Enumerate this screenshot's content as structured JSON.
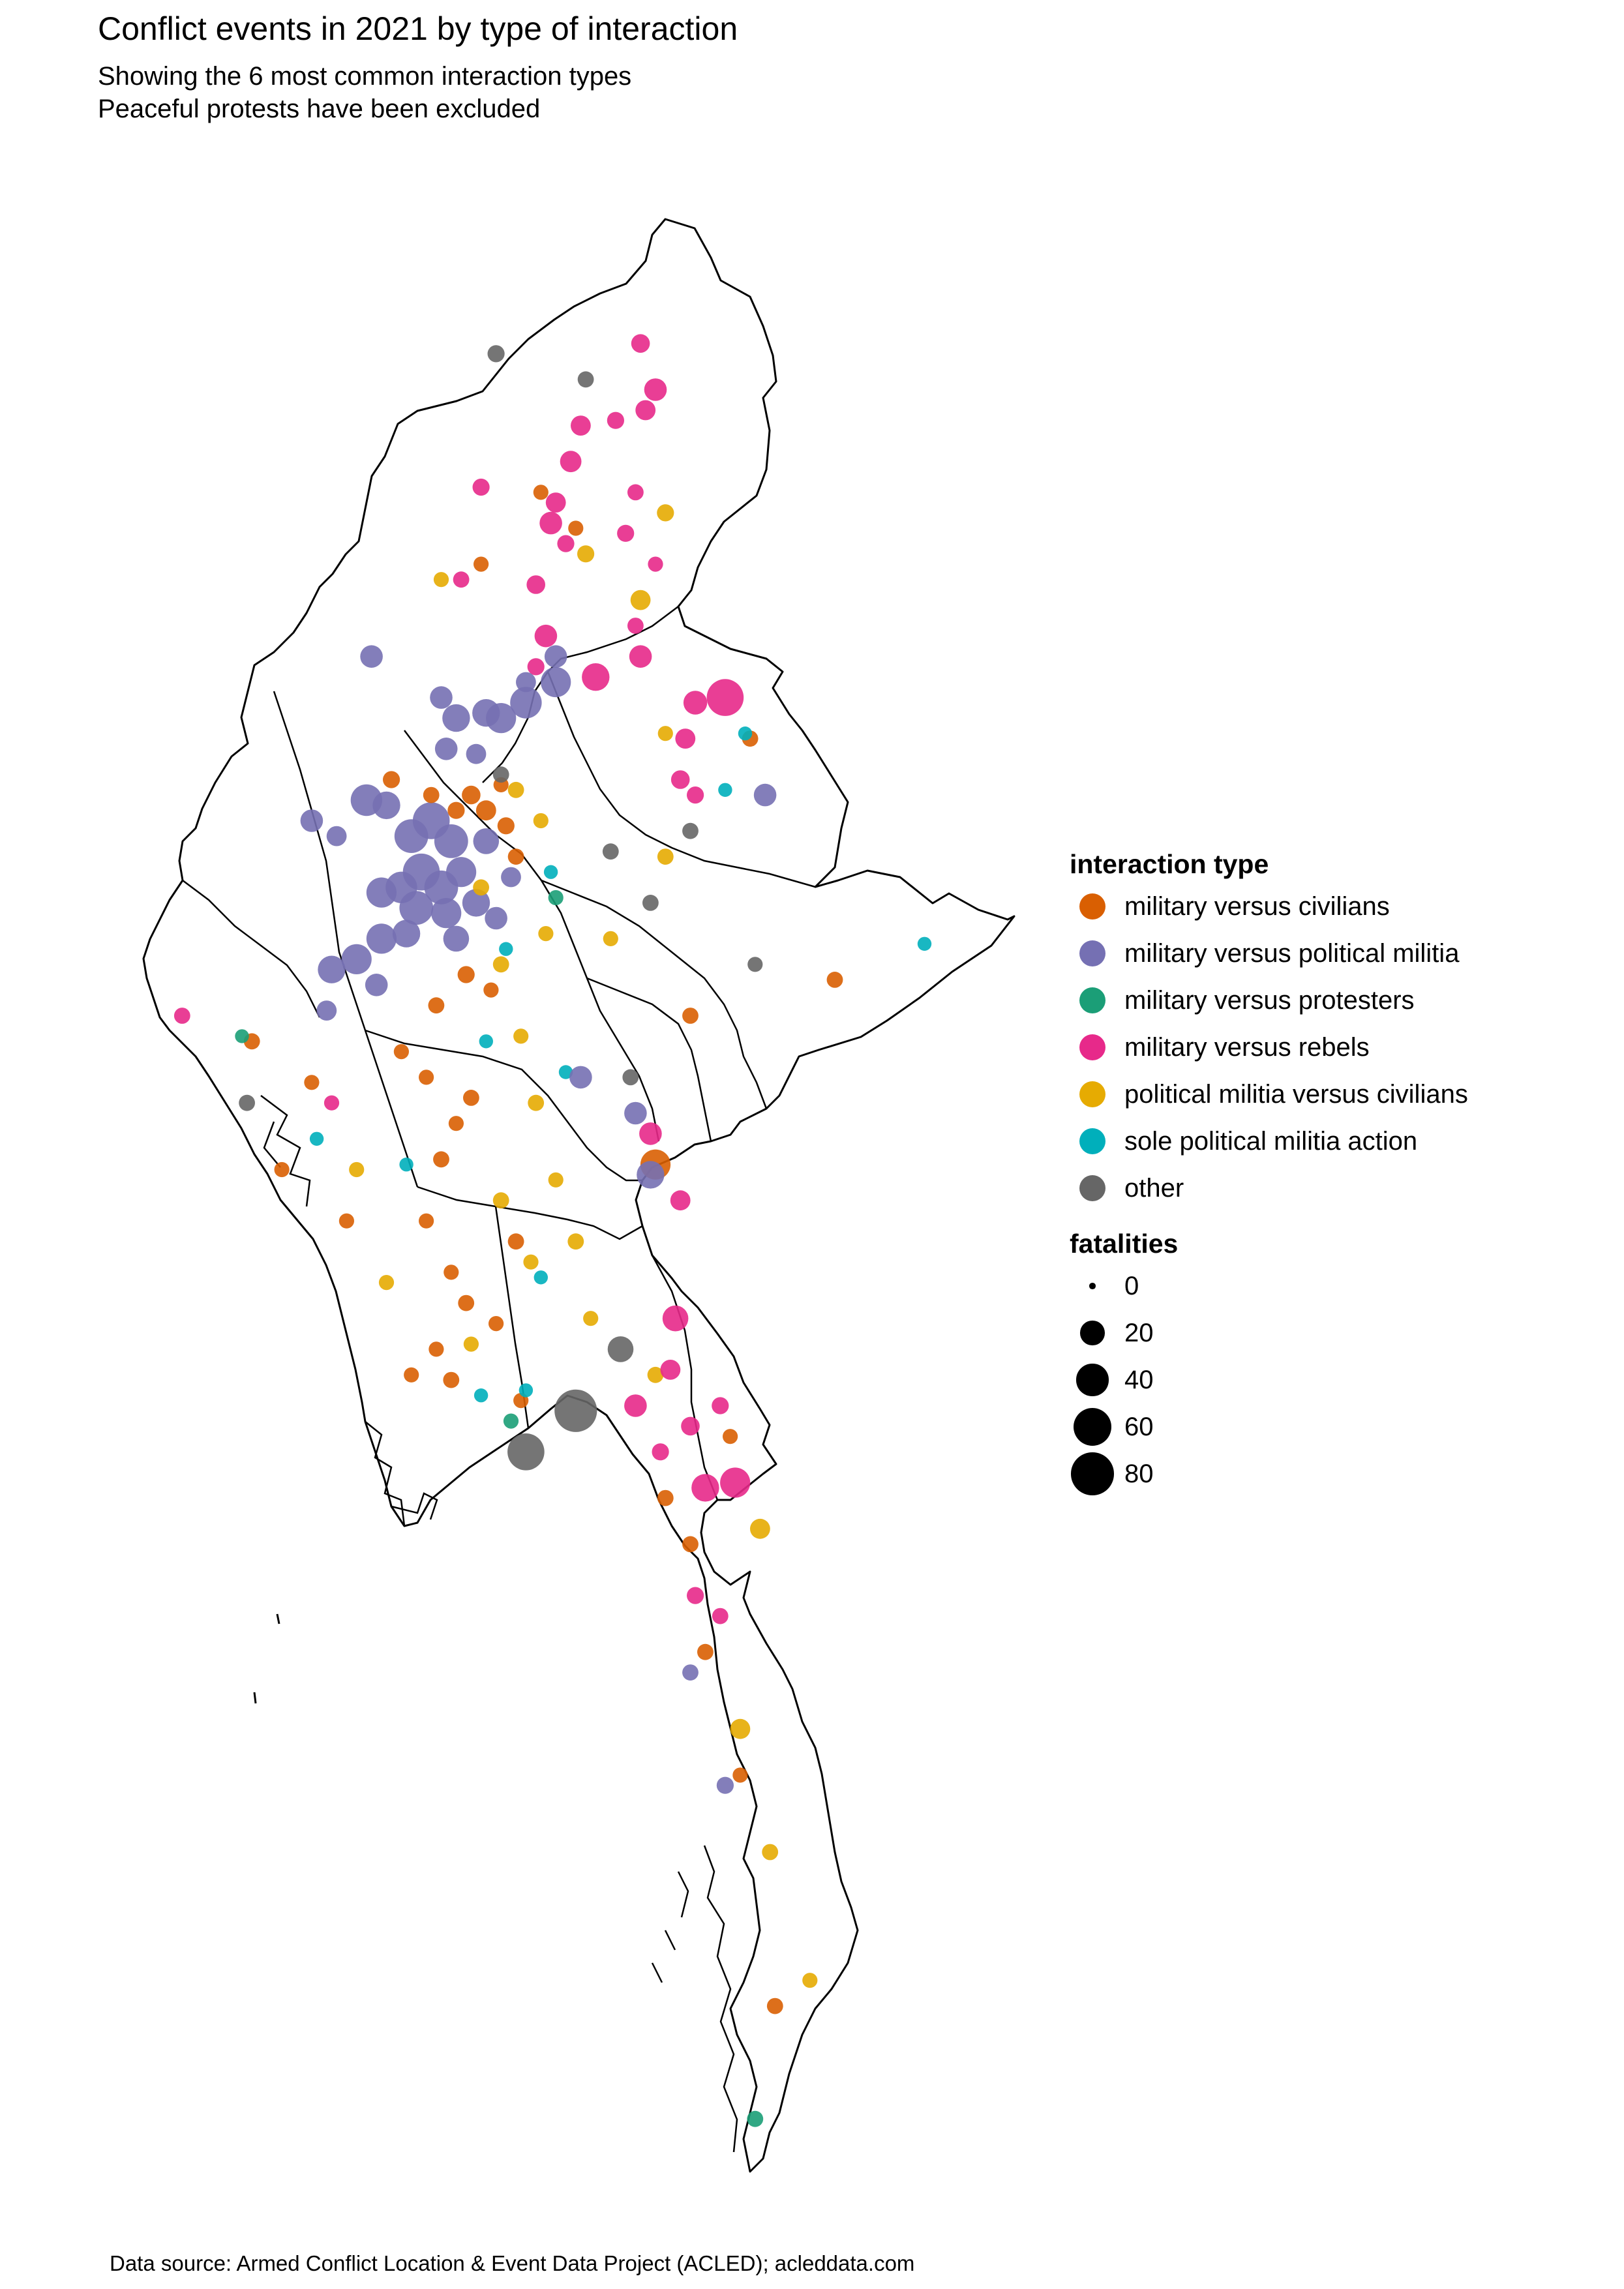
{
  "title": "Conflict events in 2021 by type of interaction",
  "subtitle_lines": [
    "Showing the 6 most common interaction types",
    "Peaceful protests have been excluded"
  ],
  "caption": "Data source: Armed Conflict Location & Event Data Project (ACLED); acleddata.com",
  "legend": {
    "color_title": "interaction type",
    "types": [
      {
        "label": "military versus civilians",
        "color": "#D95F02"
      },
      {
        "label": "military versus political militia",
        "color": "#7570B3"
      },
      {
        "label": "military versus protesters",
        "color": "#1B9E77"
      },
      {
        "label": "military versus rebels",
        "color": "#E7298A"
      },
      {
        "label": "political militia versus civilians",
        "color": "#E6AB02"
      },
      {
        "label": "sole political militia action",
        "color": "#00AFBB"
      },
      {
        "label": "other",
        "color": "#666666"
      }
    ],
    "size_title": "fatalities",
    "sizes": [
      {
        "label": "0",
        "value": 0
      },
      {
        "label": "20",
        "value": 20
      },
      {
        "label": "40",
        "value": 40
      },
      {
        "label": "60",
        "value": 60
      },
      {
        "label": "80",
        "value": 80
      }
    ]
  },
  "map": {
    "outline_color": "#000000",
    "background_color": "#FFFFFF",
    "events": [
      {
        "type": 3,
        "lon": 97.45,
        "lat": 27.35,
        "fatalities": 8
      },
      {
        "type": 3,
        "lon": 97.6,
        "lat": 26.9,
        "fatalities": 14
      },
      {
        "type": 3,
        "lon": 97.5,
        "lat": 26.7,
        "fatalities": 10
      },
      {
        "type": 3,
        "lon": 97.2,
        "lat": 26.6,
        "fatalities": 6
      },
      {
        "type": 3,
        "lon": 97.4,
        "lat": 25.9,
        "fatalities": 5
      },
      {
        "type": 6,
        "lon": 96.9,
        "lat": 27.0,
        "fatalities": 5
      },
      {
        "type": 3,
        "lon": 96.85,
        "lat": 26.55,
        "fatalities": 10
      },
      {
        "type": 3,
        "lon": 96.75,
        "lat": 26.2,
        "fatalities": 12
      },
      {
        "type": 3,
        "lon": 96.6,
        "lat": 25.8,
        "fatalities": 10
      },
      {
        "type": 3,
        "lon": 96.55,
        "lat": 25.6,
        "fatalities": 14
      },
      {
        "type": 3,
        "lon": 96.7,
        "lat": 25.4,
        "fatalities": 6
      },
      {
        "type": 4,
        "lon": 96.9,
        "lat": 25.3,
        "fatalities": 6
      },
      {
        "type": 0,
        "lon": 96.8,
        "lat": 25.55,
        "fatalities": 4
      },
      {
        "type": 3,
        "lon": 96.4,
        "lat": 25.0,
        "fatalities": 8
      },
      {
        "type": 3,
        "lon": 96.5,
        "lat": 24.5,
        "fatalities": 14
      },
      {
        "type": 3,
        "lon": 96.4,
        "lat": 24.2,
        "fatalities": 6
      },
      {
        "type": 1,
        "lon": 96.6,
        "lat": 24.3,
        "fatalities": 14
      },
      {
        "type": 1,
        "lon": 96.3,
        "lat": 24.05,
        "fatalities": 10
      },
      {
        "type": 3,
        "lon": 97.0,
        "lat": 24.1,
        "fatalities": 24
      },
      {
        "type": 3,
        "lon": 97.45,
        "lat": 24.3,
        "fatalities": 14
      },
      {
        "type": 3,
        "lon": 97.4,
        "lat": 24.6,
        "fatalities": 5
      },
      {
        "type": 3,
        "lon": 97.6,
        "lat": 25.2,
        "fatalities": 4
      },
      {
        "type": 3,
        "lon": 97.3,
        "lat": 25.5,
        "fatalities": 6
      },
      {
        "type": 4,
        "lon": 97.45,
        "lat": 24.85,
        "fatalities": 10
      },
      {
        "type": 3,
        "lon": 98.3,
        "lat": 23.9,
        "fatalities": 50
      },
      {
        "type": 3,
        "lon": 98.0,
        "lat": 23.85,
        "fatalities": 16
      },
      {
        "type": 3,
        "lon": 97.9,
        "lat": 23.5,
        "fatalities": 10
      },
      {
        "type": 3,
        "lon": 97.85,
        "lat": 23.1,
        "fatalities": 8
      },
      {
        "type": 3,
        "lon": 98.0,
        "lat": 22.95,
        "fatalities": 6
      },
      {
        "type": 1,
        "lon": 98.7,
        "lat": 22.95,
        "fatalities": 14
      },
      {
        "type": 0,
        "lon": 98.55,
        "lat": 23.5,
        "fatalities": 5
      },
      {
        "type": 4,
        "lon": 97.7,
        "lat": 23.55,
        "fatalities": 4
      },
      {
        "type": 5,
        "lon": 98.5,
        "lat": 23.55,
        "fatalities": 3
      },
      {
        "type": 6,
        "lon": 96.0,
        "lat": 27.25,
        "fatalities": 6
      },
      {
        "type": 0,
        "lon": 96.45,
        "lat": 25.9,
        "fatalities": 4
      },
      {
        "type": 3,
        "lon": 95.85,
        "lat": 25.95,
        "fatalities": 6
      },
      {
        "type": 0,
        "lon": 95.85,
        "lat": 25.2,
        "fatalities": 4
      },
      {
        "type": 4,
        "lon": 95.45,
        "lat": 25.05,
        "fatalities": 4
      },
      {
        "type": 3,
        "lon": 95.65,
        "lat": 25.05,
        "fatalities": 5
      },
      {
        "type": 1,
        "lon": 94.75,
        "lat": 24.3,
        "fatalities": 14
      },
      {
        "type": 1,
        "lon": 95.45,
        "lat": 23.9,
        "fatalities": 14
      },
      {
        "type": 1,
        "lon": 95.9,
        "lat": 23.75,
        "fatalities": 24
      },
      {
        "type": 1,
        "lon": 96.05,
        "lat": 23.7,
        "fatalities": 30
      },
      {
        "type": 1,
        "lon": 96.3,
        "lat": 23.85,
        "fatalities": 34
      },
      {
        "type": 1,
        "lon": 96.6,
        "lat": 24.05,
        "fatalities": 30
      },
      {
        "type": 1,
        "lon": 95.6,
        "lat": 23.7,
        "fatalities": 24
      },
      {
        "type": 1,
        "lon": 95.5,
        "lat": 23.4,
        "fatalities": 14
      },
      {
        "type": 1,
        "lon": 95.8,
        "lat": 23.35,
        "fatalities": 10
      },
      {
        "type": 1,
        "lon": 94.7,
        "lat": 22.9,
        "fatalities": 34
      },
      {
        "type": 1,
        "lon": 94.9,
        "lat": 22.85,
        "fatalities": 24
      },
      {
        "type": 1,
        "lon": 95.15,
        "lat": 22.55,
        "fatalities": 40
      },
      {
        "type": 1,
        "lon": 95.35,
        "lat": 22.7,
        "fatalities": 50
      },
      {
        "type": 1,
        "lon": 95.55,
        "lat": 22.5,
        "fatalities": 40
      },
      {
        "type": 1,
        "lon": 95.25,
        "lat": 22.2,
        "fatalities": 50
      },
      {
        "type": 1,
        "lon": 95.45,
        "lat": 22.05,
        "fatalities": 40
      },
      {
        "type": 1,
        "lon": 95.65,
        "lat": 22.2,
        "fatalities": 30
      },
      {
        "type": 1,
        "lon": 95.05,
        "lat": 22.05,
        "fatalities": 34
      },
      {
        "type": 1,
        "lon": 94.85,
        "lat": 22.0,
        "fatalities": 30
      },
      {
        "type": 1,
        "lon": 95.2,
        "lat": 21.85,
        "fatalities": 40
      },
      {
        "type": 1,
        "lon": 95.5,
        "lat": 21.8,
        "fatalities": 30
      },
      {
        "type": 1,
        "lon": 95.8,
        "lat": 21.9,
        "fatalities": 24
      },
      {
        "type": 1,
        "lon": 94.85,
        "lat": 21.55,
        "fatalities": 30
      },
      {
        "type": 1,
        "lon": 95.1,
        "lat": 21.6,
        "fatalities": 24
      },
      {
        "type": 1,
        "lon": 95.6,
        "lat": 21.55,
        "fatalities": 20
      },
      {
        "type": 1,
        "lon": 94.6,
        "lat": 21.35,
        "fatalities": 30
      },
      {
        "type": 1,
        "lon": 94.35,
        "lat": 21.25,
        "fatalities": 24
      },
      {
        "type": 1,
        "lon": 94.8,
        "lat": 21.1,
        "fatalities": 14
      },
      {
        "type": 1,
        "lon": 94.15,
        "lat": 22.7,
        "fatalities": 14
      },
      {
        "type": 1,
        "lon": 94.4,
        "lat": 22.55,
        "fatalities": 10
      },
      {
        "type": 1,
        "lon": 96.0,
        "lat": 21.75,
        "fatalities": 14
      },
      {
        "type": 1,
        "lon": 96.15,
        "lat": 22.15,
        "fatalities": 10
      },
      {
        "type": 1,
        "lon": 94.3,
        "lat": 20.85,
        "fatalities": 10
      },
      {
        "type": 1,
        "lon": 95.9,
        "lat": 22.5,
        "fatalities": 20
      },
      {
        "type": 0,
        "lon": 95.9,
        "lat": 22.8,
        "fatalities": 10
      },
      {
        "type": 0,
        "lon": 96.1,
        "lat": 22.65,
        "fatalities": 6
      },
      {
        "type": 0,
        "lon": 95.75,
        "lat": 22.95,
        "fatalities": 8
      },
      {
        "type": 0,
        "lon": 96.2,
        "lat": 22.35,
        "fatalities": 5
      },
      {
        "type": 0,
        "lon": 95.6,
        "lat": 22.8,
        "fatalities": 6
      },
      {
        "type": 0,
        "lon": 96.05,
        "lat": 23.05,
        "fatalities": 4
      },
      {
        "type": 0,
        "lon": 95.35,
        "lat": 22.95,
        "fatalities": 5
      },
      {
        "type": 0,
        "lon": 94.95,
        "lat": 23.1,
        "fatalities": 6
      },
      {
        "type": 0,
        "lon": 95.7,
        "lat": 21.2,
        "fatalities": 6
      },
      {
        "type": 0,
        "lon": 95.95,
        "lat": 21.05,
        "fatalities": 4
      },
      {
        "type": 0,
        "lon": 95.4,
        "lat": 20.9,
        "fatalities": 5
      },
      {
        "type": 0,
        "lon": 95.05,
        "lat": 20.45,
        "fatalities": 4
      },
      {
        "type": 0,
        "lon": 95.3,
        "lat": 20.2,
        "fatalities": 4
      },
      {
        "type": 0,
        "lon": 95.75,
        "lat": 20.0,
        "fatalities": 5
      },
      {
        "type": 0,
        "lon": 95.6,
        "lat": 19.75,
        "fatalities": 4
      },
      {
        "type": 0,
        "lon": 95.45,
        "lat": 19.4,
        "fatalities": 5
      },
      {
        "type": 0,
        "lon": 95.3,
        "lat": 18.8,
        "fatalities": 4
      },
      {
        "type": 0,
        "lon": 95.55,
        "lat": 18.3,
        "fatalities": 4
      },
      {
        "type": 0,
        "lon": 95.7,
        "lat": 18.0,
        "fatalities": 5
      },
      {
        "type": 0,
        "lon": 96.2,
        "lat": 18.6,
        "fatalities": 5
      },
      {
        "type": 0,
        "lon": 96.0,
        "lat": 17.8,
        "fatalities": 4
      },
      {
        "type": 0,
        "lon": 95.4,
        "lat": 17.55,
        "fatalities": 4
      },
      {
        "type": 0,
        "lon": 95.15,
        "lat": 17.3,
        "fatalities": 4
      },
      {
        "type": 0,
        "lon": 95.55,
        "lat": 17.25,
        "fatalities": 5
      },
      {
        "type": 0,
        "lon": 96.25,
        "lat": 17.05,
        "fatalities": 4
      },
      {
        "type": 0,
        "lon": 93.55,
        "lat": 20.55,
        "fatalities": 5
      },
      {
        "type": 0,
        "lon": 94.15,
        "lat": 20.15,
        "fatalities": 4
      },
      {
        "type": 0,
        "lon": 93.85,
        "lat": 19.3,
        "fatalities": 4
      },
      {
        "type": 0,
        "lon": 94.5,
        "lat": 18.8,
        "fatalities": 4
      },
      {
        "type": 0,
        "lon": 97.6,
        "lat": 19.35,
        "fatalities": 30
      },
      {
        "type": 0,
        "lon": 97.95,
        "lat": 20.8,
        "fatalities": 5
      },
      {
        "type": 0,
        "lon": 99.4,
        "lat": 21.15,
        "fatalities": 5
      },
      {
        "type": 0,
        "lon": 98.35,
        "lat": 16.7,
        "fatalities": 4
      },
      {
        "type": 0,
        "lon": 97.7,
        "lat": 16.1,
        "fatalities": 5
      },
      {
        "type": 0,
        "lon": 97.95,
        "lat": 15.65,
        "fatalities": 5
      },
      {
        "type": 0,
        "lon": 98.1,
        "lat": 14.6,
        "fatalities": 5
      },
      {
        "type": 0,
        "lon": 98.45,
        "lat": 13.4,
        "fatalities": 4
      },
      {
        "type": 0,
        "lon": 98.8,
        "lat": 11.15,
        "fatalities": 5
      },
      {
        "type": 4,
        "lon": 96.2,
        "lat": 23.0,
        "fatalities": 5
      },
      {
        "type": 4,
        "lon": 96.45,
        "lat": 22.7,
        "fatalities": 4
      },
      {
        "type": 4,
        "lon": 95.85,
        "lat": 22.05,
        "fatalities": 5
      },
      {
        "type": 4,
        "lon": 96.5,
        "lat": 21.6,
        "fatalities": 4
      },
      {
        "type": 4,
        "lon": 96.05,
        "lat": 21.3,
        "fatalities": 5
      },
      {
        "type": 4,
        "lon": 96.25,
        "lat": 20.6,
        "fatalities": 4
      },
      {
        "type": 4,
        "lon": 96.4,
        "lat": 19.95,
        "fatalities": 5
      },
      {
        "type": 4,
        "lon": 96.6,
        "lat": 19.2,
        "fatalities": 4
      },
      {
        "type": 4,
        "lon": 96.05,
        "lat": 19.0,
        "fatalities": 5
      },
      {
        "type": 4,
        "lon": 96.35,
        "lat": 18.4,
        "fatalities": 4
      },
      {
        "type": 4,
        "lon": 96.8,
        "lat": 18.6,
        "fatalities": 5
      },
      {
        "type": 4,
        "lon": 96.95,
        "lat": 17.85,
        "fatalities": 4
      },
      {
        "type": 4,
        "lon": 95.75,
        "lat": 17.6,
        "fatalities": 4
      },
      {
        "type": 4,
        "lon": 94.9,
        "lat": 18.2,
        "fatalities": 4
      },
      {
        "type": 4,
        "lon": 94.6,
        "lat": 19.3,
        "fatalities": 4
      },
      {
        "type": 4,
        "lon": 97.7,
        "lat": 22.35,
        "fatalities": 5
      },
      {
        "type": 4,
        "lon": 97.15,
        "lat": 21.55,
        "fatalities": 4
      },
      {
        "type": 4,
        "lon": 98.65,
        "lat": 15.8,
        "fatalities": 10
      },
      {
        "type": 4,
        "lon": 97.6,
        "lat": 17.3,
        "fatalities": 5
      },
      {
        "type": 4,
        "lon": 98.45,
        "lat": 13.85,
        "fatalities": 10
      },
      {
        "type": 4,
        "lon": 98.75,
        "lat": 12.65,
        "fatalities": 5
      },
      {
        "type": 4,
        "lon": 99.15,
        "lat": 11.4,
        "fatalities": 4
      },
      {
        "type": 4,
        "lon": 97.7,
        "lat": 25.7,
        "fatalities": 6
      },
      {
        "type": 5,
        "lon": 96.55,
        "lat": 22.2,
        "fatalities": 3
      },
      {
        "type": 5,
        "lon": 96.1,
        "lat": 21.45,
        "fatalities": 3
      },
      {
        "type": 5,
        "lon": 95.9,
        "lat": 20.55,
        "fatalities": 3
      },
      {
        "type": 5,
        "lon": 96.7,
        "lat": 20.25,
        "fatalities": 3
      },
      {
        "type": 5,
        "lon": 96.45,
        "lat": 18.25,
        "fatalities": 3
      },
      {
        "type": 5,
        "lon": 96.3,
        "lat": 17.15,
        "fatalities": 3
      },
      {
        "type": 5,
        "lon": 95.85,
        "lat": 17.1,
        "fatalities": 3
      },
      {
        "type": 5,
        "lon": 95.1,
        "lat": 19.35,
        "fatalities": 3
      },
      {
        "type": 5,
        "lon": 94.2,
        "lat": 19.6,
        "fatalities": 3
      },
      {
        "type": 5,
        "lon": 98.3,
        "lat": 23.0,
        "fatalities": 3
      },
      {
        "type": 5,
        "lon": 100.3,
        "lat": 21.5,
        "fatalities": 3
      },
      {
        "type": 2,
        "lon": 96.6,
        "lat": 21.95,
        "fatalities": 4
      },
      {
        "type": 2,
        "lon": 96.15,
        "lat": 16.85,
        "fatalities": 4
      },
      {
        "type": 2,
        "lon": 93.45,
        "lat": 20.6,
        "fatalities": 3
      },
      {
        "type": 2,
        "lon": 98.6,
        "lat": 10.05,
        "fatalities": 5
      },
      {
        "type": 6,
        "lon": 96.05,
        "lat": 23.15,
        "fatalities": 5
      },
      {
        "type": 6,
        "lon": 97.15,
        "lat": 22.4,
        "fatalities": 5
      },
      {
        "type": 6,
        "lon": 97.55,
        "lat": 21.9,
        "fatalities": 5
      },
      {
        "type": 6,
        "lon": 97.95,
        "lat": 22.6,
        "fatalities": 5
      },
      {
        "type": 6,
        "lon": 96.8,
        "lat": 16.95,
        "fatalities": 70
      },
      {
        "type": 6,
        "lon": 96.3,
        "lat": 16.55,
        "fatalities": 50
      },
      {
        "type": 6,
        "lon": 97.25,
        "lat": 17.55,
        "fatalities": 20
      },
      {
        "type": 6,
        "lon": 97.35,
        "lat": 20.2,
        "fatalities": 5
      },
      {
        "type": 6,
        "lon": 93.5,
        "lat": 19.95,
        "fatalities": 5
      },
      {
        "type": 6,
        "lon": 98.6,
        "lat": 21.3,
        "fatalities": 4
      },
      {
        "type": 3,
        "lon": 97.55,
        "lat": 19.65,
        "fatalities": 14
      },
      {
        "type": 3,
        "lon": 97.85,
        "lat": 19.0,
        "fatalities": 10
      },
      {
        "type": 1,
        "lon": 97.4,
        "lat": 19.85,
        "fatalities": 14
      },
      {
        "type": 1,
        "lon": 97.55,
        "lat": 19.25,
        "fatalities": 24
      },
      {
        "type": 1,
        "lon": 96.85,
        "lat": 20.2,
        "fatalities": 14
      },
      {
        "type": 3,
        "lon": 97.4,
        "lat": 17.0,
        "fatalities": 14
      },
      {
        "type": 3,
        "lon": 97.75,
        "lat": 17.35,
        "fatalities": 10
      },
      {
        "type": 3,
        "lon": 97.8,
        "lat": 17.85,
        "fatalities": 20
      },
      {
        "type": 3,
        "lon": 97.95,
        "lat": 16.8,
        "fatalities": 8
      },
      {
        "type": 3,
        "lon": 98.25,
        "lat": 17.0,
        "fatalities": 6
      },
      {
        "type": 3,
        "lon": 98.4,
        "lat": 16.25,
        "fatalities": 30
      },
      {
        "type": 3,
        "lon": 98.1,
        "lat": 16.2,
        "fatalities": 24
      },
      {
        "type": 3,
        "lon": 98.0,
        "lat": 15.15,
        "fatalities": 6
      },
      {
        "type": 3,
        "lon": 98.25,
        "lat": 14.95,
        "fatalities": 5
      },
      {
        "type": 3,
        "lon": 97.65,
        "lat": 16.55,
        "fatalities": 6
      },
      {
        "type": 3,
        "lon": 92.85,
        "lat": 20.8,
        "fatalities": 5
      },
      {
        "type": 3,
        "lon": 94.35,
        "lat": 19.95,
        "fatalities": 4
      },
      {
        "type": 1,
        "lon": 98.3,
        "lat": 13.3,
        "fatalities": 6
      },
      {
        "type": 1,
        "lon": 97.95,
        "lat": 14.4,
        "fatalities": 5
      }
    ]
  }
}
